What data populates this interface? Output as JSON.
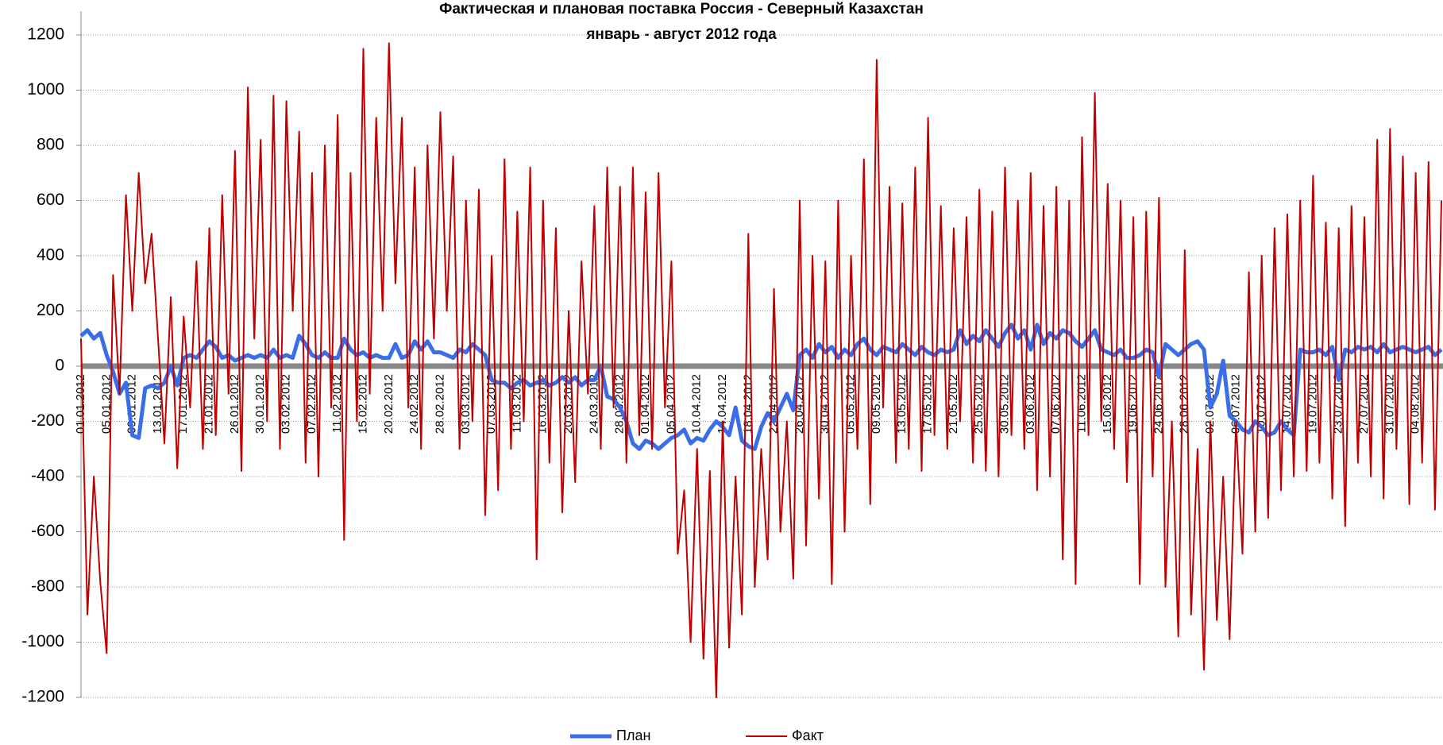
{
  "chart_data": {
    "type": "line",
    "title": "Фактическая и плановая поставка Россия - Северный Казахстан",
    "subtitle": "январь - август 2012 года",
    "categories": [
      "01.01.2012",
      null,
      null,
      null,
      "05.01.2012",
      null,
      null,
      null,
      "09.01.2012",
      null,
      null,
      null,
      "13.01.2012",
      null,
      null,
      null,
      "17.01.2012",
      null,
      null,
      null,
      "21.01.2012",
      null,
      null,
      null,
      "26.01.2012",
      null,
      null,
      null,
      "30.01.2012",
      null,
      null,
      null,
      "03.02.2012",
      null,
      null,
      null,
      "07.02.2012",
      null,
      null,
      null,
      "11.02.2012",
      null,
      null,
      null,
      "15.02.2012",
      null,
      null,
      null,
      "20.02.2012",
      null,
      null,
      null,
      "24.02.2012",
      null,
      null,
      null,
      "28.02.2012",
      null,
      null,
      null,
      "03.03.2012",
      null,
      null,
      null,
      "07.03.2012",
      null,
      null,
      null,
      "11.03.2012",
      null,
      null,
      null,
      "16.03.2012",
      null,
      null,
      null,
      "20.03.2012",
      null,
      null,
      null,
      "24.03.2012",
      null,
      null,
      null,
      "28.03.2012",
      null,
      null,
      null,
      "01.04.2012",
      null,
      null,
      null,
      "05.04.2012",
      null,
      null,
      null,
      "10.04.2012",
      null,
      null,
      null,
      "14.04.2012",
      null,
      null,
      null,
      "18.04.2012",
      null,
      null,
      null,
      "22.04.2012",
      null,
      null,
      null,
      "26.04.2012",
      null,
      null,
      null,
      "30.04.2012",
      null,
      null,
      null,
      "05.05.2012",
      null,
      null,
      null,
      "09.05.2012",
      null,
      null,
      null,
      "13.05.2012",
      null,
      null,
      null,
      "17.05.2012",
      null,
      null,
      null,
      "21.05.2012",
      null,
      null,
      null,
      "25.05.2012",
      null,
      null,
      null,
      "30.05.2012",
      null,
      null,
      null,
      "03.06.2012",
      null,
      null,
      null,
      "07.06.2012",
      null,
      null,
      null,
      "11.06.2012",
      null,
      null,
      null,
      "15.06.2012",
      null,
      null,
      null,
      "19.06.2012",
      null,
      null,
      null,
      "24.06.2012",
      null,
      null,
      null,
      "28.06.2012",
      null,
      null,
      null,
      "02.07.2012",
      null,
      null,
      null,
      "06.07.2012",
      null,
      null,
      null,
      "10.07.2012",
      null,
      null,
      null,
      "14.07.2012",
      null,
      null,
      null,
      "19.07.2012",
      null,
      null,
      null,
      "23.07.2012",
      null,
      null,
      null,
      "27.07.2012",
      null,
      null,
      null,
      "31.07.2012",
      null,
      null,
      null,
      "04.08.2012",
      null,
      null,
      null,
      null
    ],
    "series": [
      {
        "name": "План",
        "color": "#3a6ee8",
        "values": [
          110,
          130,
          100,
          120,
          40,
          -20,
          -100,
          -60,
          -250,
          -260,
          -80,
          -70,
          -80,
          -60,
          0,
          -70,
          30,
          40,
          30,
          60,
          90,
          70,
          30,
          40,
          20,
          30,
          40,
          30,
          40,
          30,
          60,
          30,
          40,
          30,
          110,
          80,
          40,
          30,
          50,
          30,
          30,
          100,
          60,
          40,
          50,
          30,
          40,
          30,
          30,
          80,
          30,
          40,
          90,
          60,
          90,
          50,
          50,
          40,
          30,
          60,
          50,
          80,
          60,
          40,
          -50,
          -60,
          -60,
          -80,
          -60,
          -50,
          -70,
          -60,
          -50,
          -70,
          -60,
          -40,
          -60,
          -40,
          -70,
          -50,
          -50,
          0,
          -110,
          -120,
          -150,
          -200,
          -280,
          -300,
          -270,
          -280,
          -300,
          -280,
          -260,
          -250,
          -230,
          -280,
          -260,
          -270,
          -230,
          -200,
          -220,
          -250,
          -150,
          -270,
          -290,
          -300,
          -220,
          -170,
          -200,
          -150,
          -100,
          -160,
          40,
          60,
          30,
          80,
          50,
          70,
          30,
          60,
          40,
          80,
          100,
          60,
          40,
          70,
          60,
          50,
          80,
          60,
          40,
          70,
          50,
          40,
          60,
          50,
          60,
          130,
          80,
          110,
          90,
          130,
          100,
          70,
          120,
          150,
          100,
          130,
          60,
          150,
          80,
          120,
          100,
          130,
          120,
          90,
          70,
          100,
          130,
          60,
          50,
          40,
          60,
          30,
          30,
          40,
          60,
          50,
          -40,
          80,
          60,
          40,
          60,
          80,
          90,
          60,
          -150,
          -100,
          20,
          -180,
          -200,
          -230,
          -240,
          -200,
          -220,
          -250,
          -240,
          -200,
          -230,
          -250,
          60,
          50,
          50,
          60,
          40,
          70,
          -50,
          60,
          50,
          70,
          60,
          70,
          50,
          80,
          50,
          60,
          70,
          60,
          50,
          60,
          70,
          40,
          60
        ]
      },
      {
        "name": "Факт",
        "color": "#c00000",
        "values": [
          100,
          -900,
          -400,
          -780,
          -1040,
          330,
          -100,
          620,
          200,
          700,
          300,
          480,
          100,
          -280,
          250,
          -370,
          180,
          -150,
          380,
          -300,
          500,
          -250,
          620,
          -100,
          780,
          -380,
          1010,
          100,
          820,
          -200,
          980,
          -300,
          960,
          200,
          850,
          -350,
          700,
          -400,
          800,
          -150,
          910,
          -630,
          700,
          -200,
          1150,
          -100,
          900,
          200,
          1170,
          300,
          900,
          -150,
          720,
          -300,
          800,
          100,
          920,
          200,
          760,
          -300,
          600,
          -200,
          640,
          -540,
          400,
          -450,
          750,
          -300,
          560,
          -200,
          720,
          -700,
          600,
          -350,
          500,
          -530,
          200,
          -420,
          380,
          -100,
          580,
          -300,
          720,
          -150,
          650,
          -350,
          720,
          -250,
          630,
          -300,
          700,
          -150,
          380,
          -680,
          -450,
          -1000,
          -300,
          -1060,
          -380,
          -1200,
          -200,
          -1020,
          -400,
          -900,
          480,
          -800,
          -300,
          -700,
          280,
          -600,
          -200,
          -770,
          600,
          -650,
          400,
          -480,
          380,
          -790,
          600,
          -600,
          400,
          -300,
          750,
          -500,
          1110,
          -150,
          650,
          -350,
          590,
          -300,
          720,
          -380,
          900,
          -250,
          580,
          -300,
          500,
          -200,
          540,
          -350,
          640,
          -380,
          560,
          -400,
          720,
          -250,
          600,
          -300,
          700,
          -450,
          580,
          -400,
          650,
          -700,
          600,
          -790,
          830,
          -250,
          990,
          -200,
          660,
          -300,
          600,
          -420,
          540,
          -790,
          560,
          -400,
          610,
          -800,
          -200,
          -980,
          420,
          -900,
          -300,
          -1100,
          -200,
          -920,
          -400,
          -990,
          -200,
          -680,
          340,
          -600,
          400,
          -550,
          500,
          -450,
          550,
          -400,
          600,
          -380,
          690,
          -350,
          520,
          -480,
          500,
          -580,
          580,
          -350,
          540,
          -400,
          820,
          -480,
          860,
          -300,
          760,
          -500,
          700,
          -350,
          740,
          -520,
          600
        ]
      }
    ],
    "ylim": [
      -1200,
      1200
    ],
    "yticks": [
      -1200,
      -1000,
      -800,
      -600,
      -400,
      -200,
      0,
      200,
      400,
      600,
      800,
      1000,
      1200
    ],
    "grid": true,
    "legend": "bottom"
  }
}
